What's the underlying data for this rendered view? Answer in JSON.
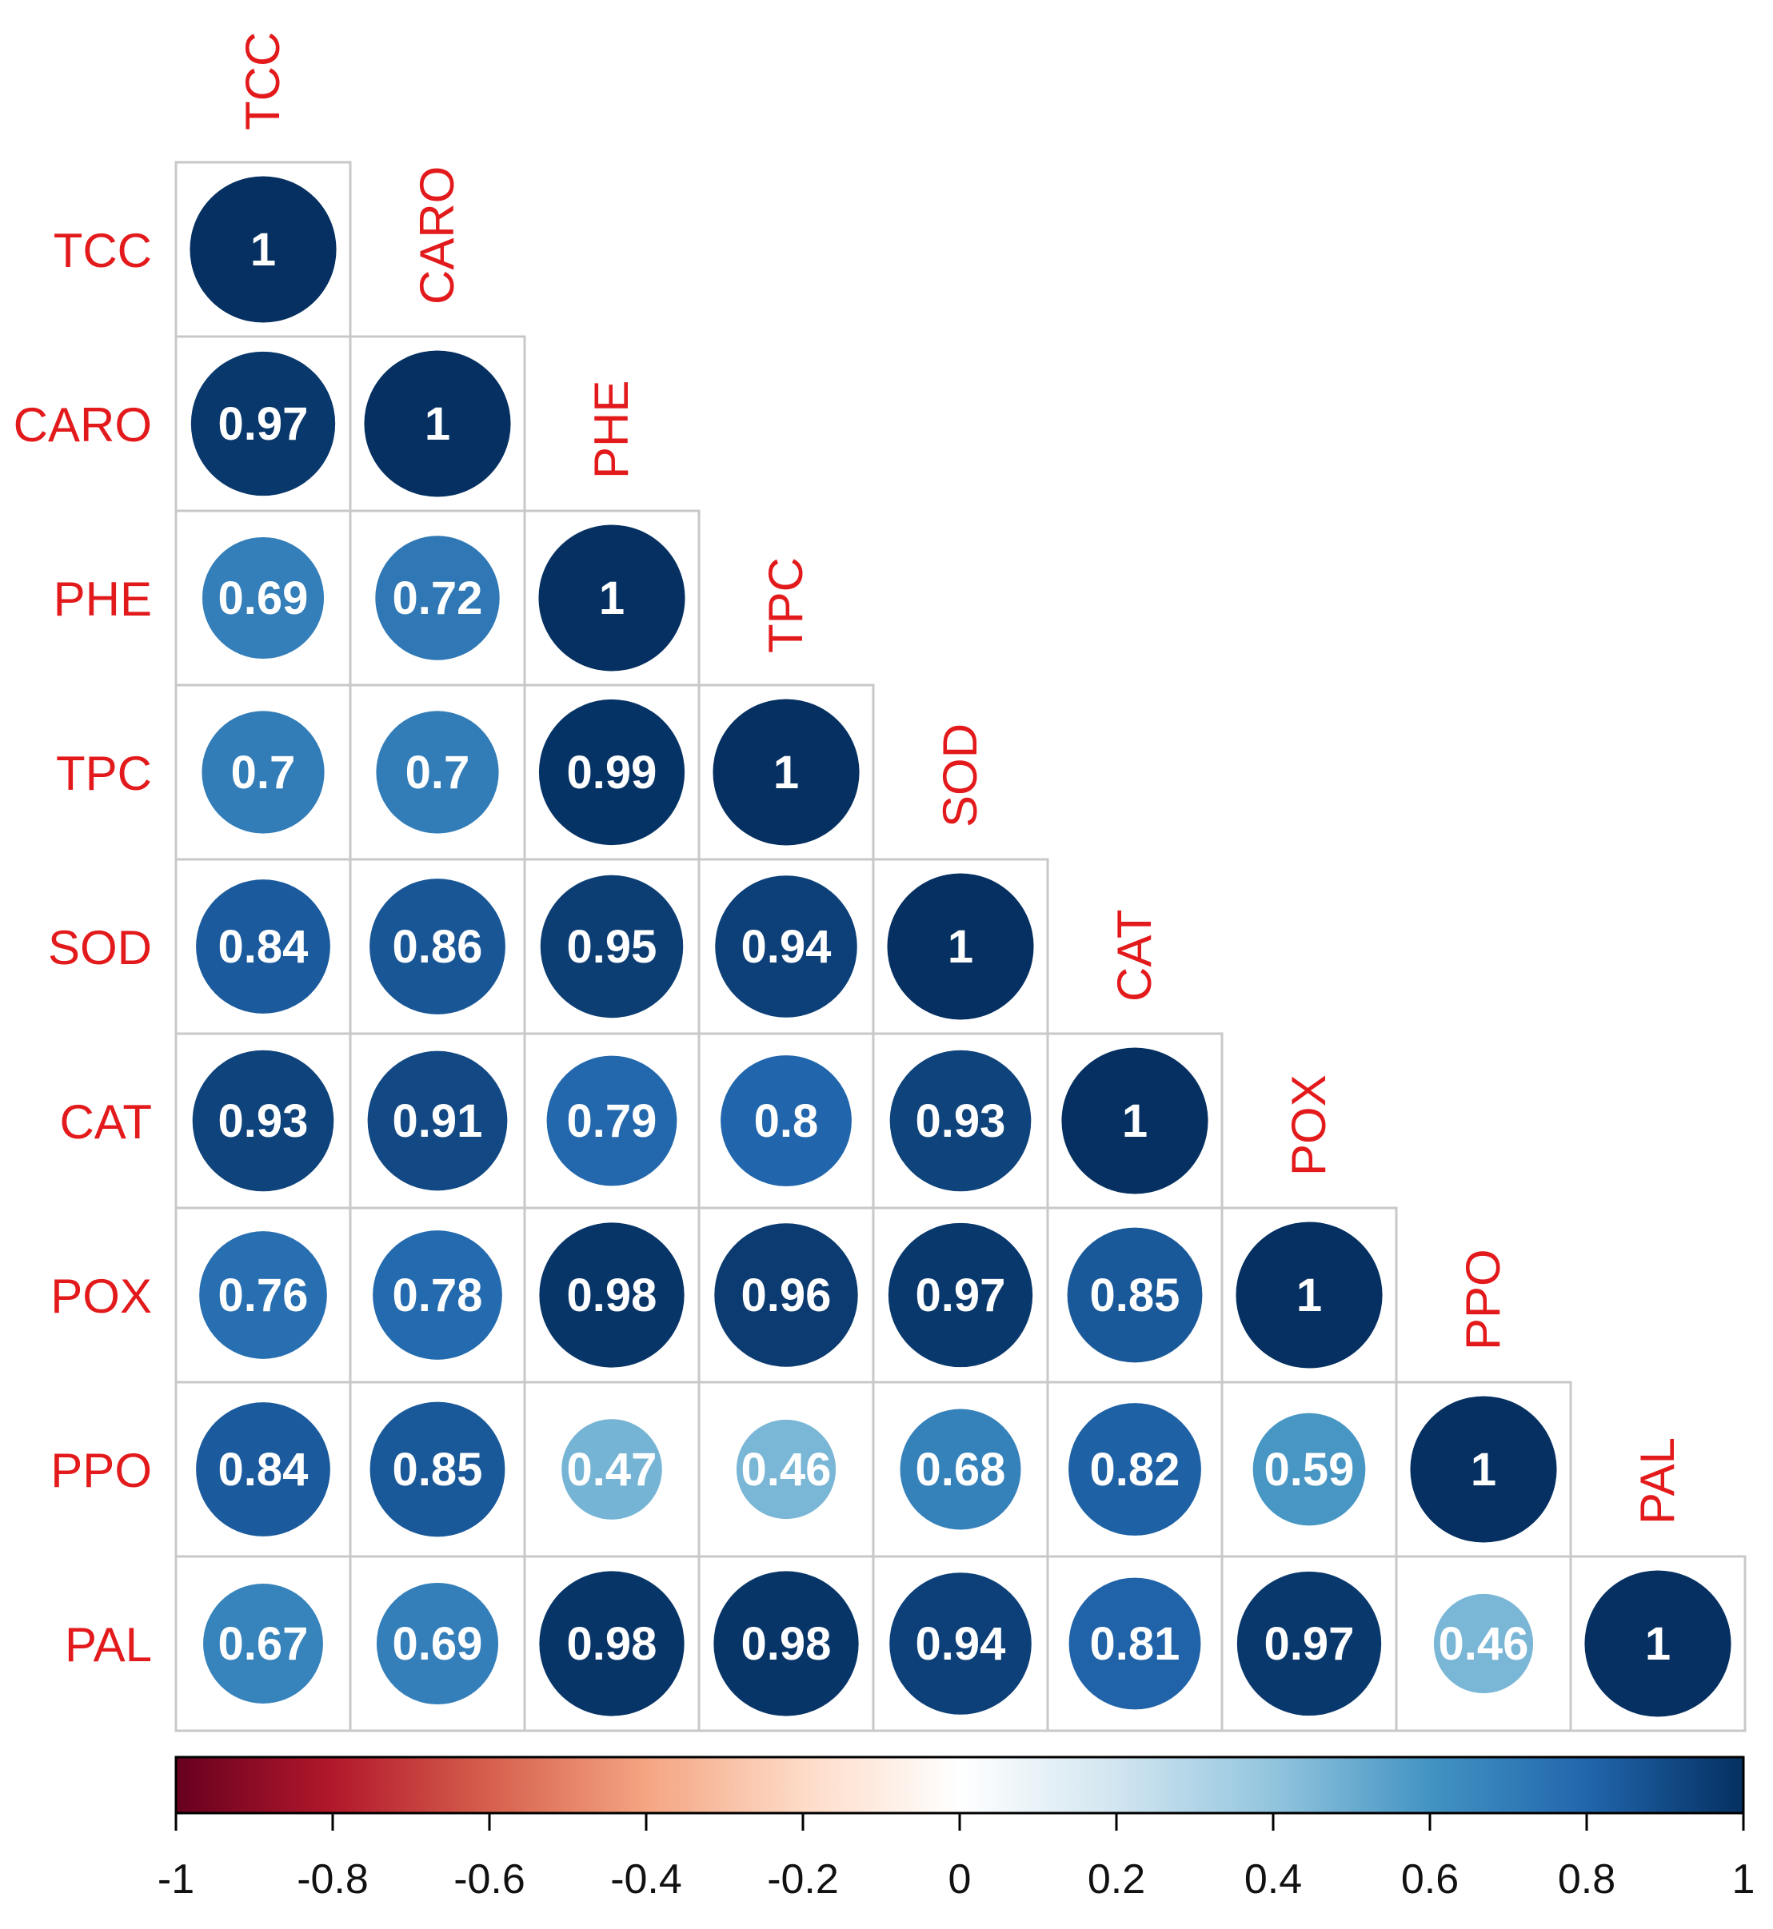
{
  "chart_data": {
    "type": "heatmap",
    "variables": [
      "TCC",
      "CARO",
      "PHE",
      "TPC",
      "SOD",
      "CAT",
      "POX",
      "PPO",
      "PAL"
    ],
    "matrix_lower": [
      [
        1
      ],
      [
        0.97,
        1
      ],
      [
        0.69,
        0.72,
        1
      ],
      [
        0.7,
        0.7,
        0.99,
        1
      ],
      [
        0.84,
        0.86,
        0.95,
        0.94,
        1
      ],
      [
        0.93,
        0.91,
        0.79,
        0.8,
        0.93,
        1
      ],
      [
        0.76,
        0.78,
        0.98,
        0.96,
        0.97,
        0.85,
        1
      ],
      [
        0.84,
        0.85,
        0.47,
        0.46,
        0.68,
        0.82,
        0.59,
        1
      ],
      [
        0.67,
        0.69,
        0.98,
        0.98,
        0.94,
        0.81,
        0.97,
        0.46,
        1
      ]
    ],
    "value_labels": [
      [
        "1"
      ],
      [
        "0.97",
        "1"
      ],
      [
        "0.69",
        "0.72",
        "1"
      ],
      [
        "0.7",
        "0.7",
        "0.99",
        "1"
      ],
      [
        "0.84",
        "0.86",
        "0.95",
        "0.94",
        "1"
      ],
      [
        "0.93",
        "0.91",
        "0.79",
        "0.8",
        "0.93",
        "1"
      ],
      [
        "0.76",
        "0.78",
        "0.98",
        "0.96",
        "0.97",
        "0.85",
        "1"
      ],
      [
        "0.84",
        "0.85",
        "0.47",
        "0.46",
        "0.68",
        "0.82",
        "0.59",
        "1"
      ],
      [
        "0.67",
        "0.69",
        "0.98",
        "0.98",
        "0.94",
        "0.81",
        "0.97",
        "0.46",
        "1"
      ]
    ],
    "shape": "circle",
    "layout": "lower-triangle",
    "colorbar": {
      "range": [
        -1,
        1
      ],
      "ticks": [
        "-1",
        "-0.8",
        "-0.6",
        "-0.4",
        "-0.2",
        "0",
        "0.2",
        "0.4",
        "0.6",
        "0.8",
        "1"
      ],
      "position": "bottom",
      "colors": [
        "#67001f",
        "#b2182b",
        "#d6604d",
        "#f4a582",
        "#fddbc7",
        "#ffffff",
        "#d1e5f0",
        "#92c5de",
        "#4393c3",
        "#2166ac",
        "#053061"
      ]
    },
    "label_color": "#e31a1c",
    "value_text_color": "#ffffff"
  }
}
